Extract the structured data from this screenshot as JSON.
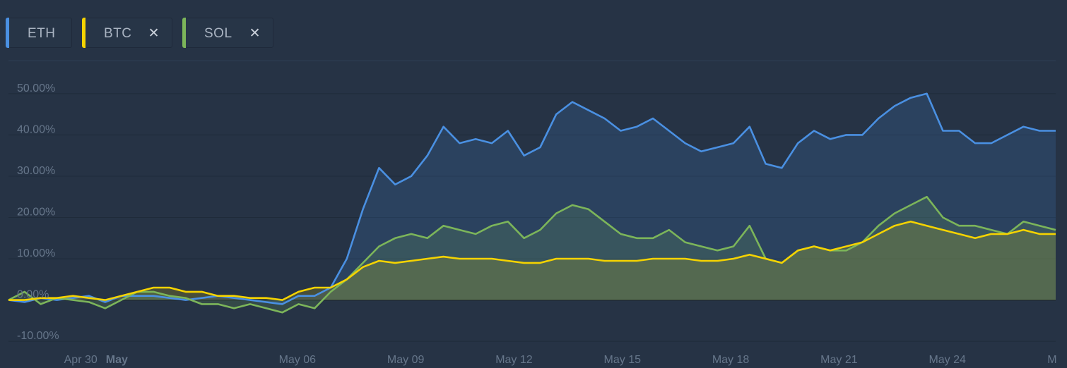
{
  "legend": {
    "items": [
      {
        "symbol": "ETH",
        "color": "#4a90e2",
        "removable": false
      },
      {
        "symbol": "BTC",
        "color": "#f5d300",
        "removable": true,
        "remove_icon": "✕"
      },
      {
        "symbol": "SOL",
        "color": "#7cb55a",
        "removable": true,
        "remove_icon": "✕"
      }
    ]
  },
  "chart_data": {
    "type": "area",
    "y_ticks": [
      "50.00%",
      "40.00%",
      "30.00%",
      "20.00%",
      "10.00%",
      "0.00%",
      "-10.00%"
    ],
    "y_tick_values": [
      50,
      40,
      30,
      20,
      10,
      0,
      -10
    ],
    "ylim": [
      -11,
      58
    ],
    "x_ticks": [
      {
        "label": "Apr 30",
        "day": 2,
        "bold": false
      },
      {
        "label": "May",
        "day": 3,
        "bold": true
      },
      {
        "label": "May 06",
        "day": 8,
        "bold": false
      },
      {
        "label": "May 09",
        "day": 11,
        "bold": false
      },
      {
        "label": "May 12",
        "day": 14,
        "bold": false
      },
      {
        "label": "May 15",
        "day": 17,
        "bold": false
      },
      {
        "label": "May 18",
        "day": 20,
        "bold": false
      },
      {
        "label": "May 21",
        "day": 23,
        "bold": false
      },
      {
        "label": "May 24",
        "day": 26,
        "bold": false
      },
      {
        "label": "M",
        "day": 28.9,
        "bold": false
      }
    ],
    "grid": true,
    "series": [
      {
        "name": "ETH",
        "color": "#4a90e2",
        "points": [
          [
            0,
            0
          ],
          [
            0.5,
            -0.5
          ],
          [
            1,
            0.5
          ],
          [
            1.5,
            0
          ],
          [
            2,
            0.5
          ],
          [
            2.5,
            1
          ],
          [
            3,
            -0.5
          ],
          [
            3.5,
            1
          ],
          [
            4,
            1
          ],
          [
            4.5,
            1
          ],
          [
            5,
            0.5
          ],
          [
            5.5,
            0
          ],
          [
            6,
            0.5
          ],
          [
            6.5,
            1
          ],
          [
            7,
            0.5
          ],
          [
            7.5,
            0
          ],
          [
            8,
            -0.5
          ],
          [
            8.5,
            -1
          ],
          [
            9,
            1
          ],
          [
            9.5,
            1
          ],
          [
            10,
            3
          ],
          [
            10.5,
            10
          ],
          [
            11,
            22
          ],
          [
            11.5,
            32
          ],
          [
            12,
            28
          ],
          [
            12.5,
            30
          ],
          [
            13,
            35
          ],
          [
            13.5,
            42
          ],
          [
            14,
            38
          ],
          [
            14.5,
            39
          ],
          [
            15,
            38
          ],
          [
            15.5,
            41
          ],
          [
            16,
            35
          ],
          [
            16.5,
            37
          ],
          [
            17,
            45
          ],
          [
            17.5,
            48
          ],
          [
            18,
            46
          ],
          [
            18.5,
            44
          ],
          [
            19,
            41
          ],
          [
            19.5,
            42
          ],
          [
            20,
            44
          ],
          [
            20.5,
            41
          ],
          [
            21,
            38
          ],
          [
            21.5,
            36
          ],
          [
            22,
            37
          ],
          [
            22.5,
            38
          ],
          [
            23,
            42
          ],
          [
            23.5,
            33
          ],
          [
            24,
            32
          ],
          [
            24.5,
            38
          ],
          [
            25,
            41
          ],
          [
            25.5,
            39
          ],
          [
            26,
            40
          ],
          [
            26.5,
            40
          ],
          [
            27,
            44
          ],
          [
            27.5,
            47
          ],
          [
            28,
            49
          ],
          [
            28.5,
            50
          ],
          [
            29,
            41
          ],
          [
            29.5,
            41
          ],
          [
            30,
            38
          ],
          [
            30.5,
            38
          ],
          [
            31,
            40
          ],
          [
            31.5,
            42
          ],
          [
            32,
            41
          ],
          [
            32.5,
            41
          ]
        ]
      },
      {
        "name": "BTC",
        "color": "#f5d300",
        "points": [
          [
            0,
            0
          ],
          [
            0.5,
            0
          ],
          [
            1,
            0.5
          ],
          [
            1.5,
            0.5
          ],
          [
            2,
            1
          ],
          [
            2.5,
            0.5
          ],
          [
            3,
            0
          ],
          [
            3.5,
            1
          ],
          [
            4,
            2
          ],
          [
            4.5,
            3
          ],
          [
            5,
            3
          ],
          [
            5.5,
            2
          ],
          [
            6,
            2
          ],
          [
            6.5,
            1
          ],
          [
            7,
            1
          ],
          [
            7.5,
            0.5
          ],
          [
            8,
            0.5
          ],
          [
            8.5,
            0
          ],
          [
            9,
            2
          ],
          [
            9.5,
            3
          ],
          [
            10,
            3
          ],
          [
            10.5,
            5
          ],
          [
            11,
            8
          ],
          [
            11.5,
            9.5
          ],
          [
            12,
            9
          ],
          [
            12.5,
            9.5
          ],
          [
            13,
            10
          ],
          [
            13.5,
            10.5
          ],
          [
            14,
            10
          ],
          [
            14.5,
            10
          ],
          [
            15,
            10
          ],
          [
            15.5,
            9.5
          ],
          [
            16,
            9
          ],
          [
            16.5,
            9
          ],
          [
            17,
            10
          ],
          [
            17.5,
            10
          ],
          [
            18,
            10
          ],
          [
            18.5,
            9.5
          ],
          [
            19,
            9.5
          ],
          [
            19.5,
            9.5
          ],
          [
            20,
            10
          ],
          [
            20.5,
            10
          ],
          [
            21,
            10
          ],
          [
            21.5,
            9.5
          ],
          [
            22,
            9.5
          ],
          [
            22.5,
            10
          ],
          [
            23,
            11
          ],
          [
            23.5,
            10
          ],
          [
            24,
            9
          ],
          [
            24.5,
            12
          ],
          [
            25,
            13
          ],
          [
            25.5,
            12
          ],
          [
            26,
            13
          ],
          [
            26.5,
            14
          ],
          [
            27,
            16
          ],
          [
            27.5,
            18
          ],
          [
            28,
            19
          ],
          [
            28.5,
            18
          ],
          [
            29,
            17
          ],
          [
            29.5,
            16
          ],
          [
            30,
            15
          ],
          [
            30.5,
            16
          ],
          [
            31,
            16
          ],
          [
            31.5,
            17
          ],
          [
            32,
            16
          ],
          [
            32.5,
            16
          ]
        ]
      },
      {
        "name": "SOL",
        "color": "#7cb55a",
        "points": [
          [
            0,
            0
          ],
          [
            0.5,
            2
          ],
          [
            1,
            -1
          ],
          [
            1.5,
            0.5
          ],
          [
            2,
            0
          ],
          [
            2.5,
            -0.5
          ],
          [
            3,
            -2
          ],
          [
            3.5,
            0
          ],
          [
            4,
            2
          ],
          [
            4.5,
            2
          ],
          [
            5,
            1
          ],
          [
            5.5,
            0.5
          ],
          [
            6,
            -1
          ],
          [
            6.5,
            -1
          ],
          [
            7,
            -2
          ],
          [
            7.5,
            -1
          ],
          [
            8,
            -2
          ],
          [
            8.5,
            -3
          ],
          [
            9,
            -1
          ],
          [
            9.5,
            -2
          ],
          [
            10,
            2
          ],
          [
            10.5,
            5
          ],
          [
            11,
            9
          ],
          [
            11.5,
            13
          ],
          [
            12,
            15
          ],
          [
            12.5,
            16
          ],
          [
            13,
            15
          ],
          [
            13.5,
            18
          ],
          [
            14,
            17
          ],
          [
            14.5,
            16
          ],
          [
            15,
            18
          ],
          [
            15.5,
            19
          ],
          [
            16,
            15
          ],
          [
            16.5,
            17
          ],
          [
            17,
            21
          ],
          [
            17.5,
            23
          ],
          [
            18,
            22
          ],
          [
            18.5,
            19
          ],
          [
            19,
            16
          ],
          [
            19.5,
            15
          ],
          [
            20,
            15
          ],
          [
            20.5,
            17
          ],
          [
            21,
            14
          ],
          [
            21.5,
            13
          ],
          [
            22,
            12
          ],
          [
            22.5,
            13
          ],
          [
            23,
            18
          ],
          [
            23.5,
            10
          ],
          [
            24,
            9
          ],
          [
            24.5,
            12
          ],
          [
            25,
            13
          ],
          [
            25.5,
            12
          ],
          [
            26,
            12
          ],
          [
            26.5,
            14
          ],
          [
            27,
            18
          ],
          [
            27.5,
            21
          ],
          [
            28,
            23
          ],
          [
            28.5,
            25
          ],
          [
            29,
            20
          ],
          [
            29.5,
            18
          ],
          [
            30,
            18
          ],
          [
            30.5,
            17
          ],
          [
            31,
            16
          ],
          [
            31.5,
            19
          ],
          [
            32,
            18
          ],
          [
            32.5,
            17
          ]
        ]
      }
    ]
  }
}
